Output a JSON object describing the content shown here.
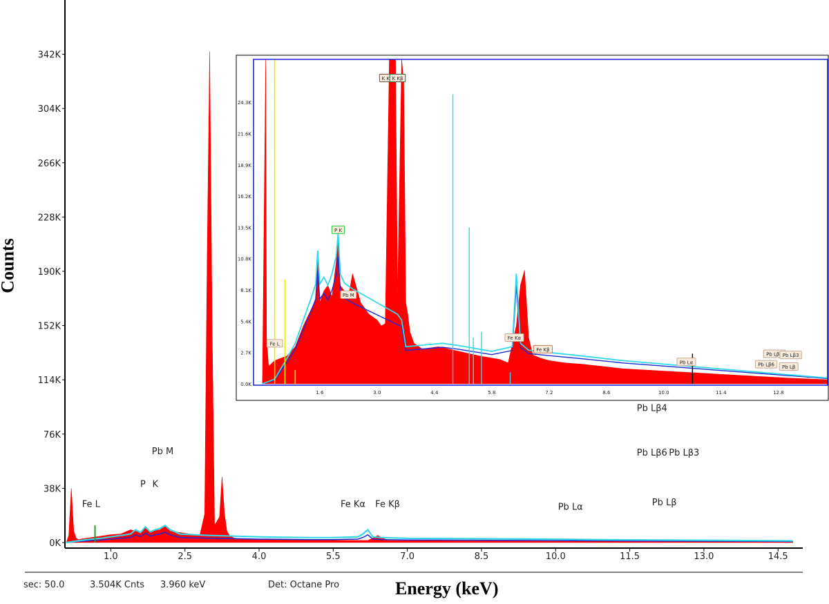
{
  "colors": {
    "spectrum": "#ff0000",
    "fit": "#33d8e8",
    "background_fit": "#1a2bd1",
    "inset_frame": "#1a1ad8",
    "marker_yellow": "#f2e600"
  },
  "axes": {
    "ylabel": "Counts",
    "xlabel": "Energy (keV)"
  },
  "status": {
    "sec": "sec: 50.0",
    "counts": "3.504K Cnts",
    "energy": "3.960 keV",
    "detector": "Det: Octane Pro"
  },
  "chart_data": [
    {
      "type": "area",
      "xlabel": "Energy (keV)",
      "ylabel": "Counts",
      "xlim": [
        0.1,
        15.0
      ],
      "ylim": [
        0,
        380000
      ],
      "x_ticks": [
        "1.0",
        "2.5",
        "4.0",
        "5.5",
        "7.0",
        "8.5",
        "10.0",
        "11.5",
        "13.0",
        "14.5"
      ],
      "y_ticks": [
        "0K",
        "38K",
        "76K",
        "114K",
        "152K",
        "190K",
        "228K",
        "266K",
        "304K",
        "342K"
      ],
      "grid": false,
      "series": [
        {
          "values_x": [
            0.1,
            0.15,
            0.2,
            0.25,
            0.3,
            0.35,
            0.4,
            0.6,
            0.8,
            1.0,
            1.2,
            1.4,
            1.6,
            1.7,
            1.8,
            1.9,
            2.0,
            2.1,
            2.2,
            2.4,
            2.6,
            2.8,
            2.9,
            2.95,
            3.0,
            3.05,
            3.1,
            3.2,
            3.25,
            3.3,
            3.35,
            3.4,
            3.5,
            3.7,
            4.0,
            4.5,
            5.0,
            5.5,
            6.0,
            6.2,
            6.3,
            6.4,
            6.6,
            7.0,
            8.0,
            9.0,
            10.0,
            11.0,
            12.0,
            13.0,
            14.0,
            14.8
          ],
          "values_y": [
            0,
            5000,
            38000,
            8000,
            3000,
            2000,
            2500,
            3500,
            4500,
            5500,
            6000,
            9000,
            7000,
            10000,
            7000,
            8500,
            9000,
            12000,
            8000,
            7000,
            6000,
            5000,
            20000,
            200000,
            344000,
            150000,
            12000,
            18000,
            46000,
            20000,
            8000,
            5000,
            3000,
            2500,
            2200,
            2000,
            1800,
            1600,
            1500,
            1500,
            3000,
            5000,
            1500,
            1400,
            1200,
            1000,
            900,
            800,
            700,
            600,
            500,
            400
          ]
        },
        {
          "name": "fit",
          "values_x": [
            0.1,
            0.3,
            0.5,
            0.8,
            1.0,
            1.2,
            1.4,
            1.5,
            1.6,
            1.7,
            1.8,
            1.9,
            2.0,
            2.1,
            2.2,
            2.4,
            3.0,
            4.0,
            5.0,
            5.5,
            6.0,
            6.1,
            6.2,
            6.3,
            6.5,
            7.0,
            8.0,
            9.0,
            10.0,
            11.0,
            12.0,
            13.0,
            14.0,
            14.8
          ],
          "values_y": [
            0,
            1000,
            2000,
            3000,
            4000,
            5000,
            6000,
            9000,
            7000,
            11000,
            7500,
            9000,
            10000,
            12000,
            9000,
            6000,
            5000,
            4000,
            3500,
            3500,
            4000,
            6000,
            9000,
            4000,
            3500,
            3000,
            2800,
            2600,
            2300,
            2000,
            1800,
            1600,
            1400,
            1200
          ]
        }
      ],
      "annotations": [
        "Fe L",
        "P",
        "K",
        "Pb M",
        "Fe Kα",
        "Fe Kβ",
        "Pb Lα",
        "Pb Lβ4",
        "Pb Lβ6",
        "Pb Lβ3",
        "Pb Lβ"
      ]
    },
    {
      "type": "area",
      "xlim": [
        0.0,
        14.0
      ],
      "ylim": [
        0,
        28000
      ],
      "x_ticks": [
        "1.6",
        "3.0",
        "4.4",
        "5.8",
        "7.2",
        "8.6",
        "10.0",
        "11.4",
        "12.8"
      ],
      "y_ticks": [
        "0.0K",
        "2.7K",
        "5.4K",
        "8.1K",
        "10.8K",
        "13.5K",
        "16.2K",
        "18.9K",
        "21.6K",
        "24.3K"
      ],
      "grid": false,
      "series": [
        {
          "values_x": [
            0.2,
            0.28,
            0.3,
            0.35,
            0.5,
            0.8,
            1.0,
            1.2,
            1.4,
            1.5,
            1.55,
            1.6,
            1.7,
            1.8,
            1.9,
            2.0,
            2.05,
            2.1,
            2.2,
            2.3,
            2.4,
            2.6,
            2.8,
            3.0,
            3.1,
            3.2,
            3.3,
            3.35,
            3.45,
            3.5,
            3.6,
            3.65,
            3.7,
            3.75,
            3.8,
            3.9,
            4.1,
            4.5,
            5.0,
            5.5,
            6.0,
            6.2,
            6.4,
            6.5,
            6.6,
            6.7,
            6.8,
            7.0,
            7.2,
            7.6,
            8.0,
            8.5,
            9.0,
            10.0,
            11.0,
            12.0,
            13.0,
            14.0
          ],
          "values_y": [
            0,
            28000,
            4000,
            1500,
            2000,
            2400,
            3200,
            5000,
            6500,
            7200,
            11500,
            7000,
            8000,
            8500,
            7500,
            10500,
            12800,
            8500,
            8000,
            7500,
            9500,
            7000,
            6000,
            5500,
            5000,
            5200,
            28000,
            28000,
            28000,
            7500,
            28000,
            26000,
            7000,
            6000,
            4500,
            3500,
            3000,
            3200,
            2800,
            2400,
            2100,
            1800,
            5000,
            8500,
            9800,
            4000,
            2500,
            2200,
            2000,
            1800,
            1700,
            1500,
            1300,
            1100,
            900,
            700,
            500,
            350
          ]
        },
        {
          "name": "fit",
          "values_x": [
            0.2,
            0.5,
            0.8,
            1.0,
            1.2,
            1.4,
            1.5,
            1.55,
            1.6,
            1.7,
            1.8,
            1.9,
            2.0,
            2.05,
            2.1,
            2.2,
            2.4,
            3.0,
            3.5,
            3.6,
            3.7,
            4.0,
            4.6,
            5.0,
            5.8,
            6.3,
            6.4,
            6.5,
            6.7,
            7.2,
            8.0,
            9.0,
            10.0,
            11.0,
            12.0,
            13.0,
            14.0
          ],
          "values_y": [
            0,
            400,
            2200,
            3500,
            5500,
            7500,
            8600,
            11500,
            8600,
            9200,
            8500,
            9500,
            11000,
            13000,
            9500,
            8700,
            8200,
            7000,
            6000,
            5500,
            3200,
            3300,
            3500,
            3300,
            2800,
            3200,
            9500,
            3500,
            2900,
            2700,
            2400,
            2000,
            1700,
            1400,
            1100,
            800,
            500
          ]
        }
      ],
      "annotations": [
        "K Kα",
        "K Kβ",
        "P K",
        "Pb M",
        "Fe L",
        "Fe Kα",
        "Fe Kβ",
        "Pb Lα",
        "Pb Lβ4",
        "Pb Lβ3",
        "Pb Lβ6",
        "Pb Lβ"
      ]
    }
  ]
}
